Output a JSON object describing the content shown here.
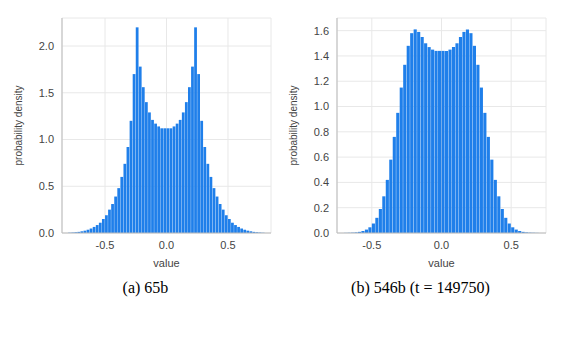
{
  "chart_data": [
    {
      "type": "histogram",
      "title": "(a) 65b",
      "x_label": "value",
      "y_label": "probability density",
      "color": "#1f7fea",
      "grid": true,
      "bins": [
        -0.8,
        -0.775,
        -0.75,
        -0.725,
        -0.7,
        -0.675,
        -0.65,
        -0.625,
        -0.6,
        -0.575,
        -0.55,
        -0.525,
        -0.5,
        -0.475,
        -0.45,
        -0.425,
        -0.4,
        -0.375,
        -0.35,
        -0.325,
        -0.3,
        -0.275,
        -0.25,
        -0.225,
        -0.2,
        -0.175,
        -0.15,
        -0.125,
        -0.1,
        -0.075,
        -0.05,
        -0.025,
        0,
        0.025,
        0.05,
        0.075,
        0.1,
        0.125,
        0.15,
        0.175,
        0.2,
        0.225,
        0.25,
        0.275,
        0.3,
        0.325,
        0.35,
        0.375,
        0.4,
        0.425,
        0.45,
        0.475,
        0.5,
        0.525,
        0.55,
        0.575,
        0.6,
        0.625,
        0.65,
        0.675,
        0.7,
        0.725,
        0.75,
        0.775,
        0.8
      ],
      "values": [
        0.003,
        0.005,
        0.008,
        0.012,
        0.018,
        0.025,
        0.035,
        0.048,
        0.065,
        0.085,
        0.11,
        0.15,
        0.19,
        0.25,
        0.31,
        0.39,
        0.48,
        0.6,
        0.74,
        0.92,
        1.2,
        1.7,
        2.2,
        1.78,
        1.56,
        1.4,
        1.29,
        1.21,
        1.17,
        1.14,
        1.12,
        1.12,
        1.12,
        1.12,
        1.14,
        1.17,
        1.21,
        1.29,
        1.4,
        1.56,
        1.78,
        2.2,
        1.7,
        1.2,
        0.92,
        0.74,
        0.6,
        0.48,
        0.39,
        0.31,
        0.25,
        0.19,
        0.15,
        0.11,
        0.085,
        0.065,
        0.048,
        0.035,
        0.025,
        0.018,
        0.012,
        0.008,
        0.005,
        0.003
      ],
      "xlim": [
        -0.85,
        0.85
      ],
      "xticks": [
        -0.5,
        {
          "value": 0,
          "label": "0.0"
        },
        0.5
      ],
      "ylim": [
        0,
        2.3
      ],
      "yticks": [
        {
          "value": 0,
          "label": "0.0"
        },
        0.5,
        {
          "value": 1,
          "label": "1.0"
        },
        1.5,
        {
          "value": 2,
          "label": "2.0"
        }
      ]
    },
    {
      "type": "histogram",
      "title": "(b) 546b (t = 149750)",
      "x_label": "value",
      "y_label": "probability density",
      "color": "#1f7fea",
      "grid": true,
      "bins": [
        -0.7,
        -0.675,
        -0.65,
        -0.625,
        -0.6,
        -0.575,
        -0.55,
        -0.525,
        -0.5,
        -0.475,
        -0.45,
        -0.425,
        -0.4,
        -0.375,
        -0.35,
        -0.325,
        -0.3,
        -0.275,
        -0.25,
        -0.225,
        -0.2,
        -0.175,
        -0.15,
        -0.125,
        -0.1,
        -0.075,
        -0.05,
        -0.025,
        0,
        0.025,
        0.05,
        0.075,
        0.1,
        0.125,
        0.15,
        0.175,
        0.2,
        0.225,
        0.25,
        0.275,
        0.3,
        0.325,
        0.35,
        0.375,
        0.4,
        0.425,
        0.45,
        0.475,
        0.5,
        0.525,
        0.55,
        0.575,
        0.6,
        0.625,
        0.65,
        0.675,
        0.7
      ],
      "values": [
        0.001,
        0.002,
        0.003,
        0.005,
        0.009,
        0.016,
        0.027,
        0.045,
        0.075,
        0.12,
        0.19,
        0.29,
        0.42,
        0.58,
        0.76,
        0.95,
        1.15,
        1.33,
        1.48,
        1.58,
        1.61,
        1.59,
        1.55,
        1.5,
        1.47,
        1.45,
        1.44,
        1.44,
        1.44,
        1.44,
        1.45,
        1.47,
        1.5,
        1.55,
        1.59,
        1.61,
        1.58,
        1.48,
        1.33,
        1.15,
        0.95,
        0.76,
        0.58,
        0.42,
        0.29,
        0.19,
        0.12,
        0.075,
        0.045,
        0.027,
        0.016,
        0.009,
        0.005,
        0.003,
        0.002,
        0.001
      ],
      "xlim": [
        -0.75,
        0.75
      ],
      "xticks": [
        -0.5,
        {
          "value": 0,
          "label": "0.0"
        },
        0.5
      ],
      "ylim": [
        0,
        1.7
      ],
      "yticks": [
        {
          "value": 0,
          "label": "0.0"
        },
        0.2,
        0.4,
        0.6,
        0.8,
        {
          "value": 1,
          "label": "1.0"
        },
        1.2,
        1.4,
        1.6
      ]
    }
  ]
}
